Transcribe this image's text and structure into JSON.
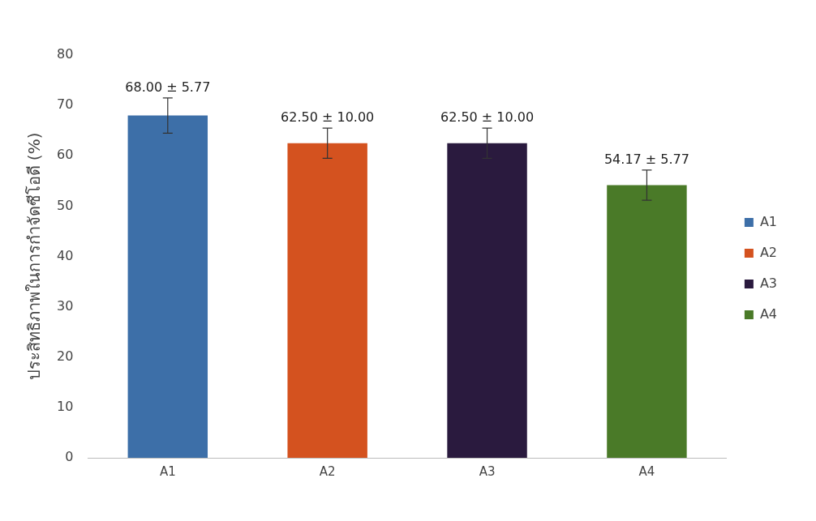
{
  "chart_data": {
    "type": "bar",
    "ylabel": "ประสิทธิภาพในการกำจัดซีโอดี (%)",
    "categories": [
      "A1",
      "A2",
      "A3",
      "A4"
    ],
    "series": [
      {
        "name": "A1",
        "color": "#3d6fa8",
        "values": [
          68,
          null,
          null,
          null
        ],
        "errors": [
          3.5,
          null,
          null,
          null
        ],
        "value_labels": [
          "68.00 ± 5.77",
          null,
          null,
          null
        ]
      },
      {
        "name": "A2",
        "color": "#d4521f",
        "values": [
          null,
          62.5,
          null,
          null
        ],
        "errors": [
          null,
          3,
          null,
          null
        ],
        "value_labels": [
          null,
          "62.50 ± 10.00",
          null,
          null
        ]
      },
      {
        "name": "A3",
        "color": "#2a1a3e",
        "values": [
          null,
          null,
          62.5,
          null
        ],
        "errors": [
          null,
          null,
          3,
          null
        ],
        "value_labels": [
          null,
          null,
          "62.50 ± 10.00",
          null
        ]
      },
      {
        "name": "A4",
        "color": "#4a7a28",
        "values": [
          null,
          null,
          null,
          54.17
        ],
        "errors": [
          null,
          null,
          null,
          3
        ],
        "value_labels": [
          null,
          null,
          null,
          "54.17 ± 5.77"
        ]
      }
    ],
    "ylim": [
      0,
      80
    ],
    "yticks": [
      0,
      10,
      20,
      30,
      40,
      50,
      60,
      70,
      80
    ],
    "grid": false,
    "legend": "right"
  }
}
